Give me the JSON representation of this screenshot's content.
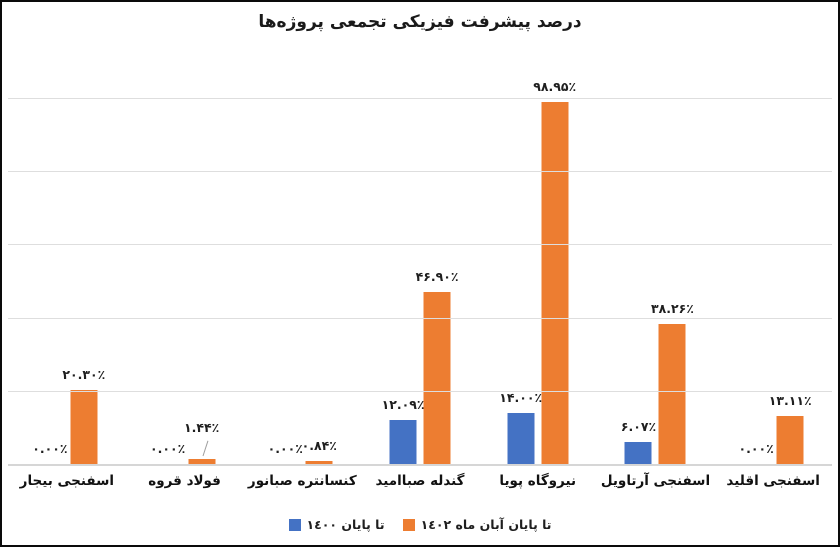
{
  "title": "درصد پیشرفت فیزیکی تجمعی پروژه‌ها",
  "colors": {
    "series_blue": "#4472C4",
    "series_orange": "#ED7D31",
    "gridline": "#DEDEDE",
    "axis_line": "#D6D6D6",
    "text": "#1A1A1A",
    "border": "#0A0A0A"
  },
  "legend": {
    "items": [
      {
        "label": "تا پایان ١٤٠٠",
        "color": "#4472C4"
      },
      {
        "label": "تا پایان آبان ماه ١٤٠٢",
        "color": "#ED7D31"
      }
    ]
  },
  "chart_data": {
    "type": "bar",
    "direction": "rtl",
    "title": "درصد پیشرفت فیزیکی تجمعی پروژه‌ها",
    "categories": [
      "اسفنجی بیجار",
      "فولاد قروه",
      "کنسانتره صبانور",
      "گندله صباامید",
      "نیروگاه پویا",
      "اسفنجی آرتاویل",
      "اسفنجی اقلید"
    ],
    "categories_note": "order as displayed left-to-right",
    "series": [
      {
        "name": "تا پایان ١٤٠٠",
        "color": "#4472C4",
        "values": [
          0.0,
          0.0,
          0.0,
          12.09,
          14.0,
          6.07,
          0.0
        ],
        "labels": [
          "۰.۰۰٪",
          "۰.۰۰٪",
          "۰.۰۰٪",
          "۱۲.۰۹٪",
          "۱۴.۰۰٪",
          "۶.۰۷٪",
          "۰.۰۰٪"
        ],
        "label_leader": [
          false,
          false,
          false,
          false,
          false,
          false,
          false
        ]
      },
      {
        "name": "تا پایان آبان ماه ١٤٠٢",
        "color": "#ED7D31",
        "values": [
          20.3,
          1.44,
          0.84,
          46.9,
          98.95,
          38.26,
          13.11
        ],
        "labels": [
          "۲۰.۳۰٪",
          "۱.۴۴٪",
          "۰.۸۴٪",
          "۴۶.۹۰٪",
          "۹۸.۹۵٪",
          "۳۸.۲۶٪",
          "۱۳.۱۱٪"
        ],
        "label_leader": [
          false,
          true,
          false,
          false,
          false,
          false,
          false
        ]
      }
    ],
    "xlabel": "",
    "ylabel": "",
    "ylim": [
      0,
      100
    ],
    "gridline_step": 20,
    "grid": true,
    "y_axis_tick_labels_visible": false,
    "legend_position": "bottom"
  }
}
